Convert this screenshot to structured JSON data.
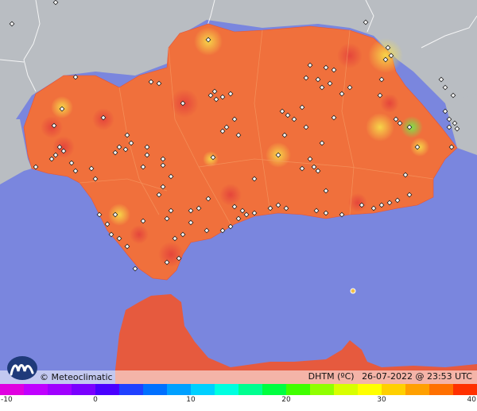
{
  "brand": {
    "name": "© Meteoclimatic"
  },
  "caption": {
    "variable": "DHTM (ºC)",
    "datetime": "26-07-2022 @ 23:53 UTC"
  },
  "legend": {
    "ticks": [
      "-10",
      "0",
      "10",
      "20",
      "30",
      "40"
    ],
    "colors": [
      "#e000e0",
      "#c000ff",
      "#a000ff",
      "#7a00ff",
      "#4a00ff",
      "#2040ff",
      "#0070ff",
      "#00a0ff",
      "#00d0ff",
      "#00ffe0",
      "#00ff90",
      "#00ff40",
      "#40ff00",
      "#90ff00",
      "#d8ff00",
      "#ffff00",
      "#ffd000",
      "#ffa000",
      "#ff7000",
      "#ff3000"
    ]
  },
  "colors": {
    "sea": "#7a86de",
    "land_foreign": "#b9bdc2",
    "region_base": "#f0703c",
    "region_dark": "#e4533a",
    "station_marker": "#ffffff"
  }
}
